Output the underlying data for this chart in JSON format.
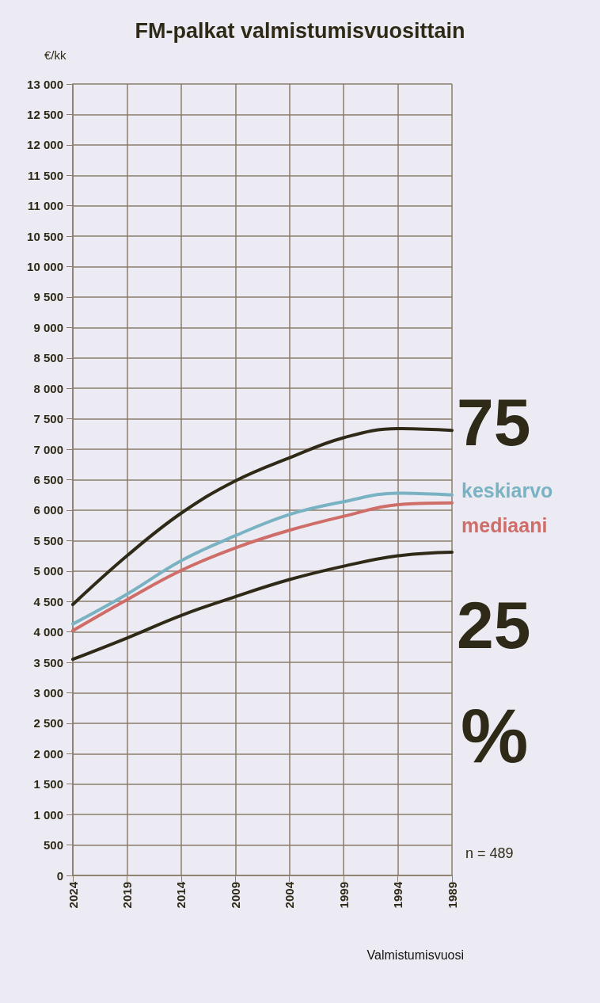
{
  "chart_data": {
    "type": "line",
    "title": "FM-palkat valmistumisvuosittain",
    "ylabel": "€/kk",
    "xlabel": "Valmistumisvuosi",
    "x": [
      2024,
      2019,
      2014,
      2009,
      2004,
      1999,
      1994,
      1989
    ],
    "series": [
      {
        "name": "75",
        "color": "#2e2a17",
        "values": [
          4450,
          5250,
          5950,
          6480,
          6860,
          7190,
          7340,
          7310
        ]
      },
      {
        "name": "keskiarvo",
        "color": "#79b2c2",
        "values": [
          4130,
          4620,
          5170,
          5580,
          5930,
          6140,
          6280,
          6250
        ]
      },
      {
        "name": "mediaani",
        "color": "#cf6d68",
        "values": [
          4020,
          4530,
          5010,
          5380,
          5670,
          5900,
          6090,
          6120
        ]
      },
      {
        "name": "25",
        "color": "#2e2a17",
        "values": [
          3550,
          3900,
          4270,
          4580,
          4860,
          5080,
          5250,
          5310
        ]
      }
    ],
    "xlim": [
      2024,
      1989
    ],
    "xticks": [
      2024,
      2019,
      2014,
      2009,
      2004,
      1999,
      1994,
      1989
    ],
    "ylim": [
      0,
      13000
    ],
    "yticks": [
      0,
      500,
      {
        "value": 1000,
        "label": "1 000"
      },
      {
        "value": 1500,
        "label": "1 500"
      },
      {
        "value": 2000,
        "label": "2 000"
      },
      {
        "value": 2500,
        "label": "2 500"
      },
      {
        "value": 3000,
        "label": "3 000"
      },
      {
        "value": 3500,
        "label": "3 500"
      },
      {
        "value": 4000,
        "label": "4 000"
      },
      {
        "value": 4500,
        "label": "4 500"
      },
      {
        "value": 5000,
        "label": "5 000"
      },
      {
        "value": 5500,
        "label": "5 500"
      },
      {
        "value": 6000,
        "label": "6 000"
      },
      {
        "value": 6500,
        "label": "6 500"
      },
      {
        "value": 7000,
        "label": "7 000"
      },
      {
        "value": 7500,
        "label": "7 500"
      },
      {
        "value": 8000,
        "label": "8 000"
      },
      {
        "value": 8500,
        "label": "8 500"
      },
      {
        "value": 9000,
        "label": "9 000"
      },
      {
        "value": 9500,
        "label": "9 500"
      },
      {
        "value": 10000,
        "label": "10 000"
      },
      {
        "value": 10500,
        "label": "10 500"
      },
      {
        "value": 11000,
        "label": "11 000"
      },
      {
        "value": 11500,
        "label": "11 500"
      },
      {
        "value": 12000,
        "label": "12 000"
      },
      {
        "value": 12500,
        "label": "12 500"
      },
      {
        "value": 13000,
        "label": "13 000"
      }
    ],
    "grid": true,
    "legend": false,
    "marker": "none",
    "line_style": "solid",
    "annotations": [
      "%",
      "n = 489"
    ]
  }
}
